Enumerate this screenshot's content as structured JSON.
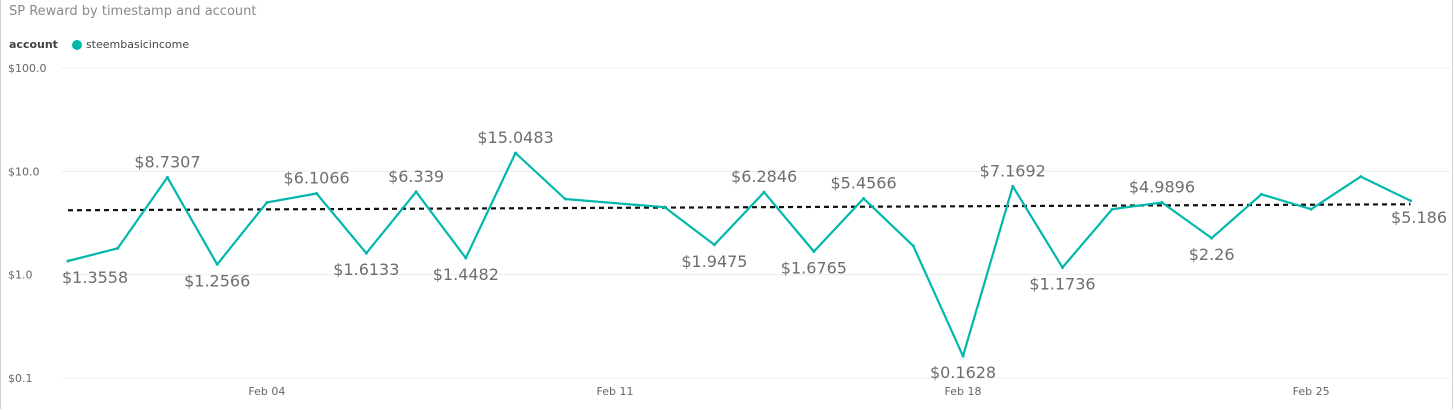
{
  "chart_data": {
    "type": "line",
    "title": "SP Reward by timestamp and account",
    "legend_title": "account",
    "legend_position": "top-left",
    "y_scale": "log",
    "ylim": [
      0.1,
      100
    ],
    "yticks": [
      {
        "value": 100,
        "label": "$100.0"
      },
      {
        "value": 10,
        "label": "$10.0"
      },
      {
        "value": 1,
        "label": "$1.0"
      },
      {
        "value": 0.1,
        "label": "$0.1"
      }
    ],
    "xlim": [
      "2018-01-31",
      "2018-03-01"
    ],
    "xticks": [
      {
        "date": "2018-02-04",
        "label": "Feb 04"
      },
      {
        "date": "2018-02-11",
        "label": "Feb 11"
      },
      {
        "date": "2018-02-18",
        "label": "Feb 18"
      },
      {
        "date": "2018-02-25",
        "label": "Feb 25"
      }
    ],
    "grid": true,
    "trendline": {
      "style": "dashed",
      "color": "#111111",
      "start_value": 4.2,
      "end_value": 4.8
    },
    "series": [
      {
        "name": "steembasicincome",
        "color": "#01B8AA",
        "points": [
          {
            "x": "2018-01-31",
            "y": 1.3558,
            "label": "$1.3558",
            "label_pos": "below"
          },
          {
            "x": "2018-02-01",
            "y": 1.8
          },
          {
            "x": "2018-02-02",
            "y": 8.7307,
            "label": "$8.7307",
            "label_pos": "above"
          },
          {
            "x": "2018-02-03",
            "y": 1.2566,
            "label": "$1.2566",
            "label_pos": "below"
          },
          {
            "x": "2018-02-04",
            "y": 5.0
          },
          {
            "x": "2018-02-05",
            "y": 6.1066,
            "label": "$6.1066",
            "label_pos": "above"
          },
          {
            "x": "2018-02-06",
            "y": 1.6133,
            "label": "$1.6133",
            "label_pos": "below"
          },
          {
            "x": "2018-02-07",
            "y": 6.339,
            "label": "$6.339",
            "label_pos": "above"
          },
          {
            "x": "2018-02-08",
            "y": 1.4482,
            "label": "$1.4482",
            "label_pos": "below"
          },
          {
            "x": "2018-02-09",
            "y": 15.0483,
            "label": "$15.0483",
            "label_pos": "above"
          },
          {
            "x": "2018-02-10",
            "y": 5.4
          },
          {
            "x": "2018-02-12",
            "y": 4.5
          },
          {
            "x": "2018-02-13",
            "y": 1.9475,
            "label": "$1.9475",
            "label_pos": "below"
          },
          {
            "x": "2018-02-14",
            "y": 6.2846,
            "label": "$6.2846",
            "label_pos": "above"
          },
          {
            "x": "2018-02-15",
            "y": 1.6765,
            "label": "$1.6765",
            "label_pos": "below"
          },
          {
            "x": "2018-02-16",
            "y": 5.4566,
            "label": "$5.4566",
            "label_pos": "above"
          },
          {
            "x": "2018-02-17",
            "y": 1.9
          },
          {
            "x": "2018-02-18",
            "y": 0.1628,
            "label": "$0.1628",
            "label_pos": "below"
          },
          {
            "x": "2018-02-19",
            "y": 7.1692,
            "label": "$7.1692",
            "label_pos": "above"
          },
          {
            "x": "2018-02-20",
            "y": 1.1736,
            "label": "$1.1736",
            "label_pos": "below"
          },
          {
            "x": "2018-02-21",
            "y": 4.3
          },
          {
            "x": "2018-02-22",
            "y": 4.9896,
            "label": "$4.9896",
            "label_pos": "above"
          },
          {
            "x": "2018-02-23",
            "y": 2.26,
            "label": "$2.26",
            "label_pos": "below"
          },
          {
            "x": "2018-02-24",
            "y": 6.0
          },
          {
            "x": "2018-02-25",
            "y": 4.3
          },
          {
            "x": "2018-02-26",
            "y": 8.9
          },
          {
            "x": "2018-02-27",
            "y": 5.186,
            "label": "$5.186",
            "label_pos": "below"
          }
        ]
      }
    ]
  }
}
